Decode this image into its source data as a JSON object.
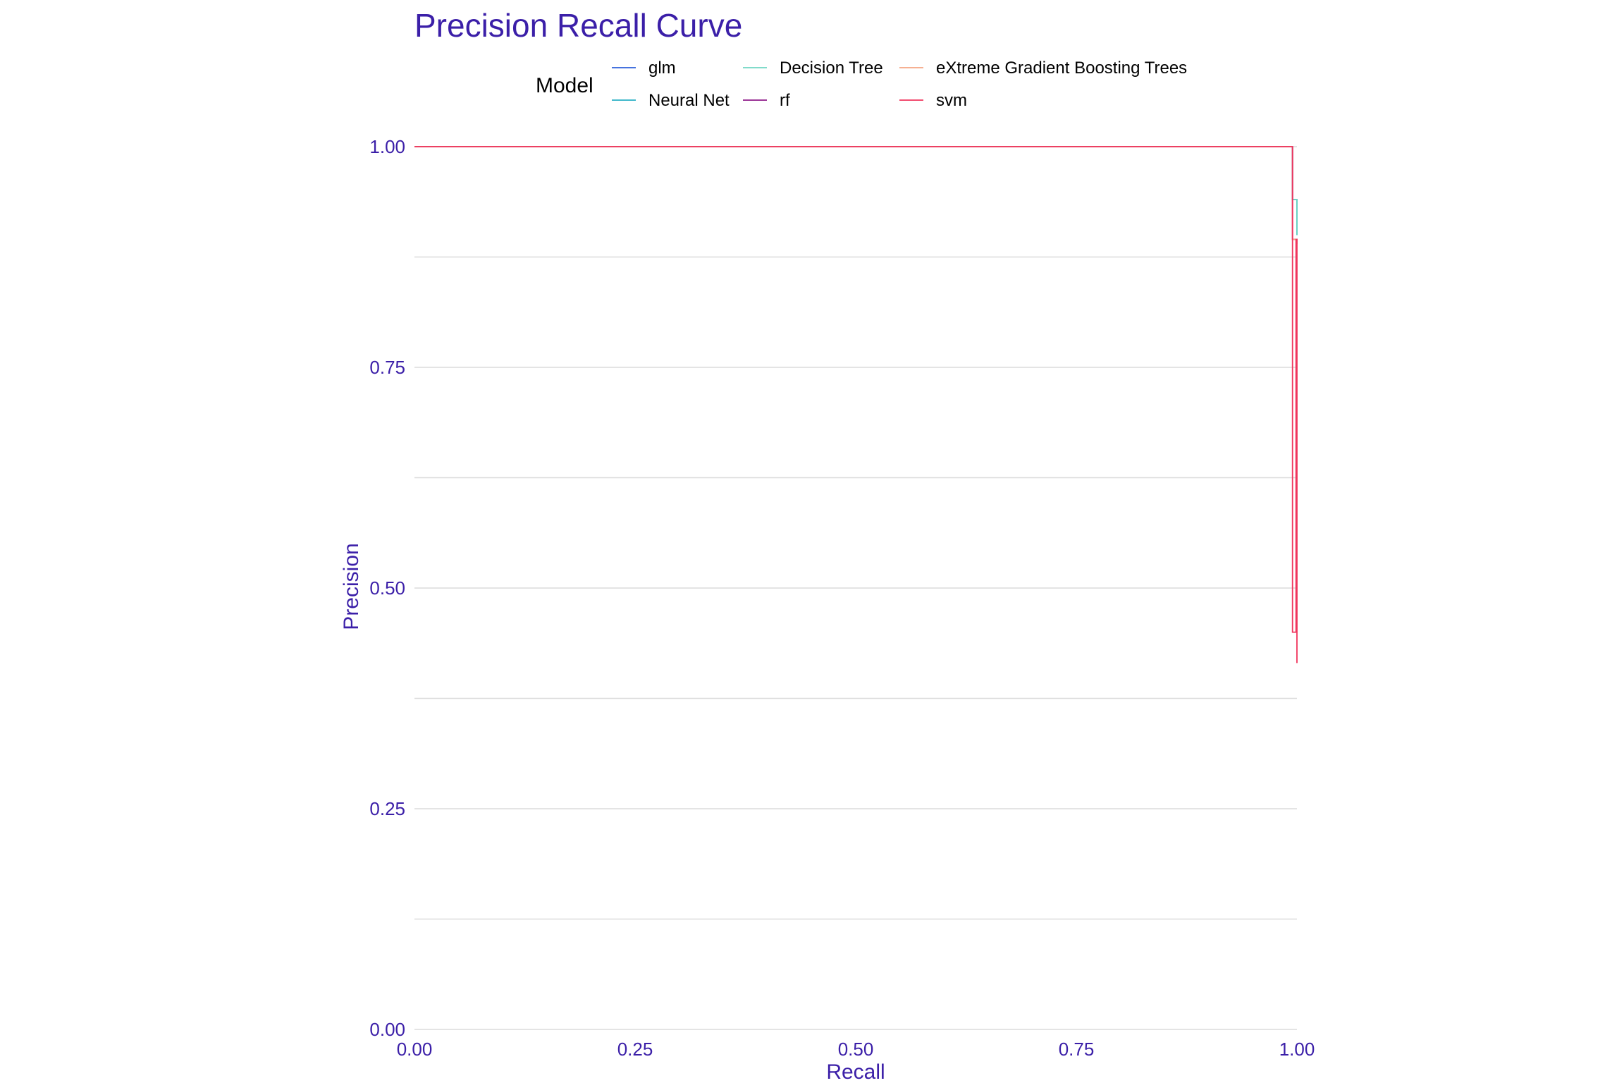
{
  "chart_data": {
    "type": "line",
    "title": "Precision Recall Curve",
    "xlabel": "Recall",
    "ylabel": "Precision",
    "xlim": [
      0,
      1
    ],
    "ylim": [
      0,
      1
    ],
    "xticks": [
      "0.00",
      "0.25",
      "0.50",
      "0.75",
      "1.00"
    ],
    "yticks": [
      "0.00",
      "0.25",
      "0.50",
      "0.75",
      "1.00"
    ],
    "grid": "horizontal major and minor",
    "legend": {
      "title": "Model",
      "placement": "top",
      "entries": [
        "glm",
        "Neural Net",
        "Decision Tree",
        "rf",
        "eXtreme Gradient Boosting Trees",
        "svm"
      ]
    },
    "colors": {
      "title": "#3B1FA8",
      "axis_text": "#3B1FA8",
      "grid": "#DCDCDC"
    },
    "series": [
      {
        "name": "glm",
        "color": "#2B5FD9",
        "x": [
          0.0,
          0.995,
          0.995,
          1.0,
          1.0
        ],
        "y": [
          1.0,
          1.0,
          0.94,
          0.94,
          0.9
        ]
      },
      {
        "name": "Neural Net",
        "color": "#29AFC4",
        "x": [
          0.0,
          0.995,
          0.995,
          1.0,
          1.0
        ],
        "y": [
          1.0,
          1.0,
          0.94,
          0.94,
          0.9
        ]
      },
      {
        "name": "Decision Tree",
        "color": "#6FD6C2",
        "x": [
          0.0,
          0.995,
          0.995,
          1.0,
          1.0
        ],
        "y": [
          1.0,
          1.0,
          0.94,
          0.94,
          0.9
        ]
      },
      {
        "name": "rf",
        "color": "#8E1A8A",
        "x": [
          0.0,
          0.995,
          0.995,
          1.0,
          1.0
        ],
        "y": [
          1.0,
          1.0,
          0.895,
          0.895,
          0.89
        ]
      },
      {
        "name": "eXtreme Gradient Boosting Trees",
        "color": "#F4A582",
        "x": [
          0.0,
          0.995,
          0.995,
          1.0,
          1.0
        ],
        "y": [
          1.0,
          1.0,
          0.895,
          0.895,
          0.89
        ]
      },
      {
        "name": "svm",
        "color": "#F0355D",
        "x": [
          0.0,
          0.995,
          0.995,
          0.999,
          0.999,
          1.0,
          1.0
        ],
        "y": [
          1.0,
          1.0,
          0.45,
          0.45,
          0.895,
          0.895,
          0.415
        ]
      }
    ]
  }
}
